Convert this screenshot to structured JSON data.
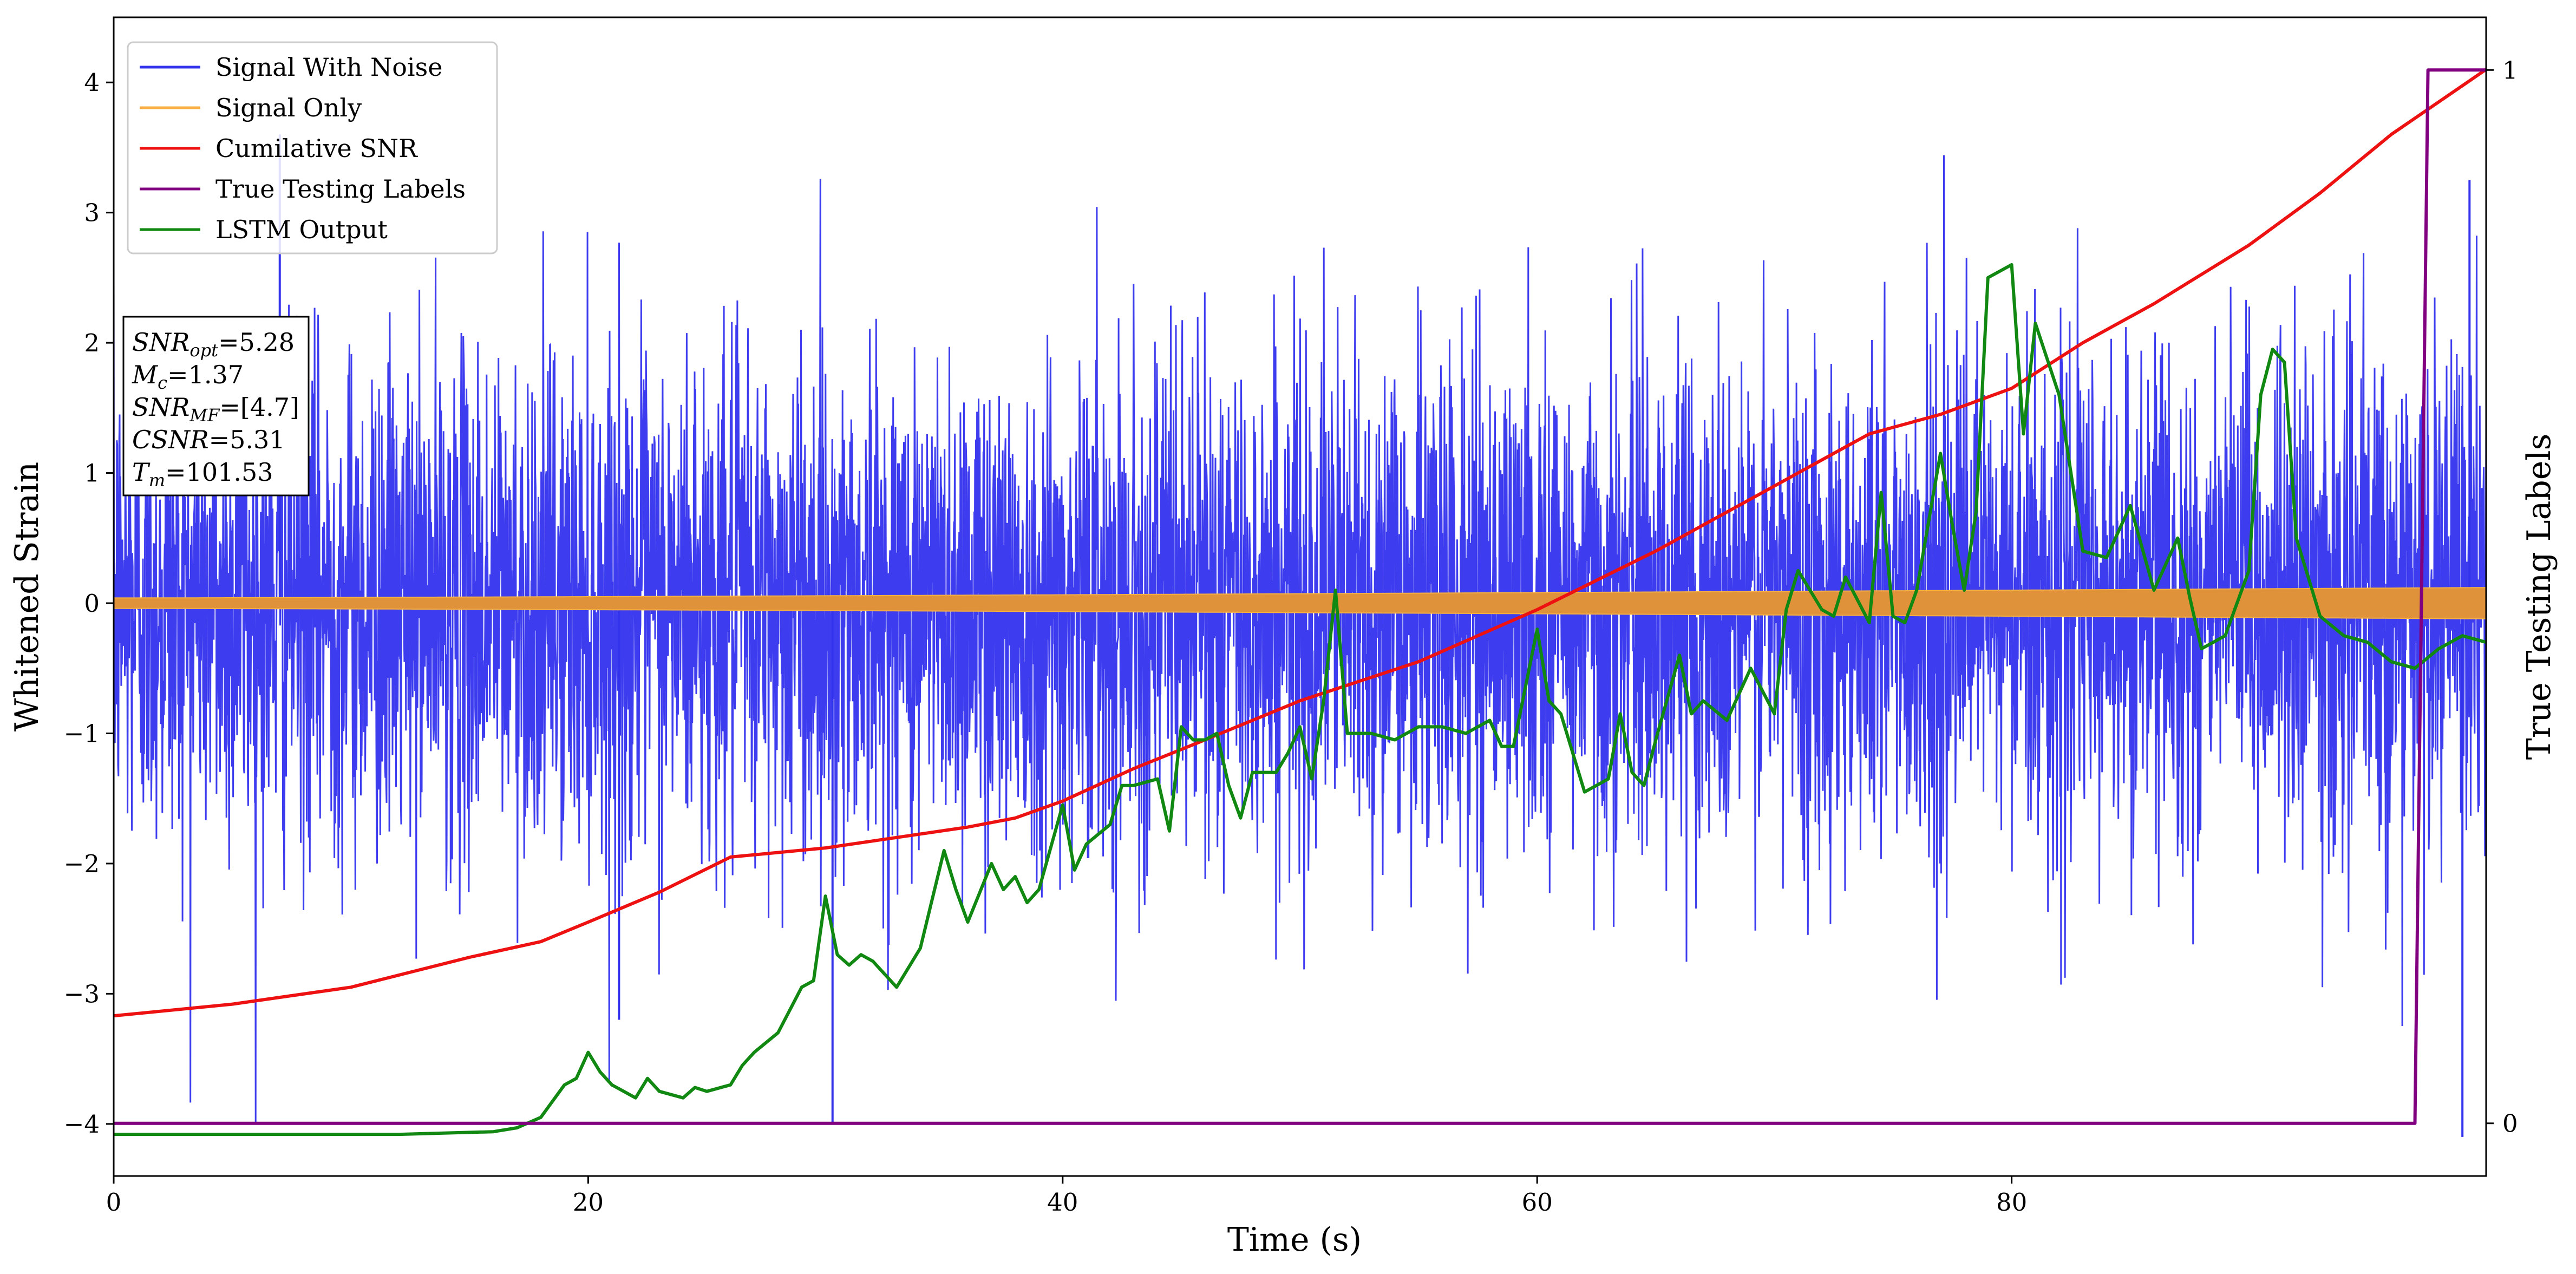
{
  "chart_data": {
    "type": "line",
    "title": "",
    "xlabel": "Time (s)",
    "ylabel": "Whitened Strain",
    "y2label": "True Testing Labels",
    "xlim": [
      0,
      100
    ],
    "ylim": [
      -4.4,
      4.5
    ],
    "y2lim": [
      -0.05,
      1.05
    ],
    "xticks": [
      0,
      20,
      40,
      60,
      80
    ],
    "yticks": [
      -4,
      -3,
      -2,
      -1,
      0,
      1,
      2,
      3,
      4
    ],
    "y2ticks": [
      0,
      1
    ],
    "grid": false,
    "legend": {
      "position": "top-left",
      "entries": [
        {
          "name": "Signal With Noise",
          "color": "#3333ee"
        },
        {
          "name": "Signal Only",
          "color": "#f5b041"
        },
        {
          "name": "Cumilative SNR",
          "color": "#ee1111"
        },
        {
          "name": "True Testing Labels",
          "color": "#800080"
        },
        {
          "name": "LSTM Output",
          "color": "#118811"
        }
      ]
    },
    "annotation": [
      {
        "sym": "SNR",
        "sub": "opt",
        "value": "=5.28"
      },
      {
        "sym": "M",
        "sub": "c",
        "value": "=1.37"
      },
      {
        "sym": "SNR",
        "sub": "MF",
        "value": "=[4.7]"
      },
      {
        "sym": "CSNR",
        "sub": "",
        "value": "=5.31"
      },
      {
        "sym": "T",
        "sub": "m",
        "value": "=101.53"
      }
    ],
    "signal_with_noise": {
      "description_range": [
        -4.1,
        3.6
      ],
      "notable_spikes": [
        {
          "x": 30.3,
          "y": -4.0
        },
        {
          "x": 99.0,
          "y": -4.1
        },
        {
          "x": 99.3,
          "y": 3.25
        },
        {
          "x": 7.0,
          "y": 3.6
        },
        {
          "x": 21.3,
          "y": -3.2
        }
      ]
    },
    "signal_only": {
      "amplitude_start": 0.04,
      "amplitude_end": 0.12
    },
    "series": [
      {
        "name": "Cumilative SNR",
        "axis": "left",
        "x": [
          0,
          5,
          10,
          15,
          18,
          20,
          23,
          26,
          30,
          33,
          36,
          38,
          40,
          43,
          46,
          50,
          55,
          60,
          65,
          70,
          74,
          77,
          80,
          83,
          86,
          90,
          93,
          96,
          100
        ],
        "y": [
          -3.17,
          -3.08,
          -2.95,
          -2.72,
          -2.6,
          -2.45,
          -2.22,
          -1.95,
          -1.88,
          -1.8,
          -1.72,
          -1.65,
          -1.52,
          -1.27,
          -1.05,
          -0.75,
          -0.45,
          -0.05,
          0.4,
          0.9,
          1.3,
          1.45,
          1.65,
          2.0,
          2.3,
          2.75,
          3.15,
          3.6,
          4.1
        ]
      },
      {
        "name": "LSTM Output",
        "axis": "left",
        "x": [
          0,
          12,
          16,
          17,
          18,
          19,
          19.5,
          20,
          20.5,
          21,
          22,
          22.5,
          23,
          24,
          24.5,
          25,
          26,
          26.5,
          27,
          28,
          29,
          29.5,
          30,
          30.5,
          31,
          31.5,
          32,
          33,
          33.5,
          34,
          35,
          35.5,
          36,
          37,
          37.5,
          38,
          38.5,
          39,
          40,
          40.5,
          41,
          42,
          42.5,
          43,
          44,
          44.5,
          45,
          45.5,
          46,
          46.5,
          47,
          47.5,
          48,
          49,
          49.5,
          50,
          50.5,
          51,
          51.5,
          52,
          53,
          54,
          55,
          56,
          57,
          58,
          58.5,
          59,
          60,
          60.5,
          61,
          62,
          63,
          63.5,
          64,
          64.5,
          65,
          66,
          66.5,
          67,
          68,
          69,
          70,
          70.5,
          71,
          72,
          72.5,
          73,
          74,
          74.5,
          75,
          75.5,
          76,
          77,
          77.5,
          78,
          78.5,
          79,
          80,
          80.5,
          81,
          82,
          83,
          84,
          85,
          86,
          87,
          87.5,
          88,
          89,
          90,
          90.5,
          91,
          91.5,
          92,
          93,
          94,
          95,
          96,
          97,
          98,
          99,
          100
        ],
        "y": [
          -4.08,
          -4.08,
          -4.06,
          -4.03,
          -3.95,
          -3.7,
          -3.65,
          -3.45,
          -3.6,
          -3.7,
          -3.8,
          -3.65,
          -3.75,
          -3.8,
          -3.72,
          -3.75,
          -3.7,
          -3.55,
          -3.45,
          -3.3,
          -2.95,
          -2.9,
          -2.25,
          -2.7,
          -2.78,
          -2.7,
          -2.75,
          -2.95,
          -2.8,
          -2.65,
          -1.9,
          -2.2,
          -2.45,
          -2.0,
          -2.2,
          -2.1,
          -2.3,
          -2.2,
          -1.55,
          -2.05,
          -1.85,
          -1.7,
          -1.4,
          -1.4,
          -1.35,
          -1.75,
          -0.95,
          -1.05,
          -1.05,
          -1.0,
          -1.4,
          -1.65,
          -1.3,
          -1.3,
          -1.15,
          -0.95,
          -1.35,
          -0.75,
          0.1,
          -1.0,
          -1.0,
          -1.05,
          -0.95,
          -0.95,
          -1.0,
          -0.9,
          -1.1,
          -1.1,
          -0.2,
          -0.75,
          -0.85,
          -1.45,
          -1.35,
          -0.85,
          -1.3,
          -1.4,
          -1.05,
          -0.4,
          -0.85,
          -0.75,
          -0.9,
          -0.5,
          -0.85,
          -0.05,
          0.25,
          -0.05,
          -0.1,
          0.2,
          -0.15,
          0.85,
          -0.1,
          -0.15,
          0.1,
          1.15,
          0.6,
          0.1,
          0.7,
          2.5,
          2.6,
          1.3,
          2.15,
          1.6,
          0.4,
          0.35,
          0.75,
          0.1,
          0.5,
          0.05,
          -0.35,
          -0.25,
          0.25,
          1.6,
          1.95,
          1.85,
          0.5,
          -0.1,
          -0.25,
          -0.3,
          -0.45,
          -0.5,
          -0.35,
          -0.25,
          -0.3
        ]
      },
      {
        "name": "True Testing Labels",
        "axis": "right",
        "x": [
          0,
          97.0,
          97.55,
          100
        ],
        "y": [
          0,
          0,
          1,
          1
        ]
      }
    ]
  }
}
